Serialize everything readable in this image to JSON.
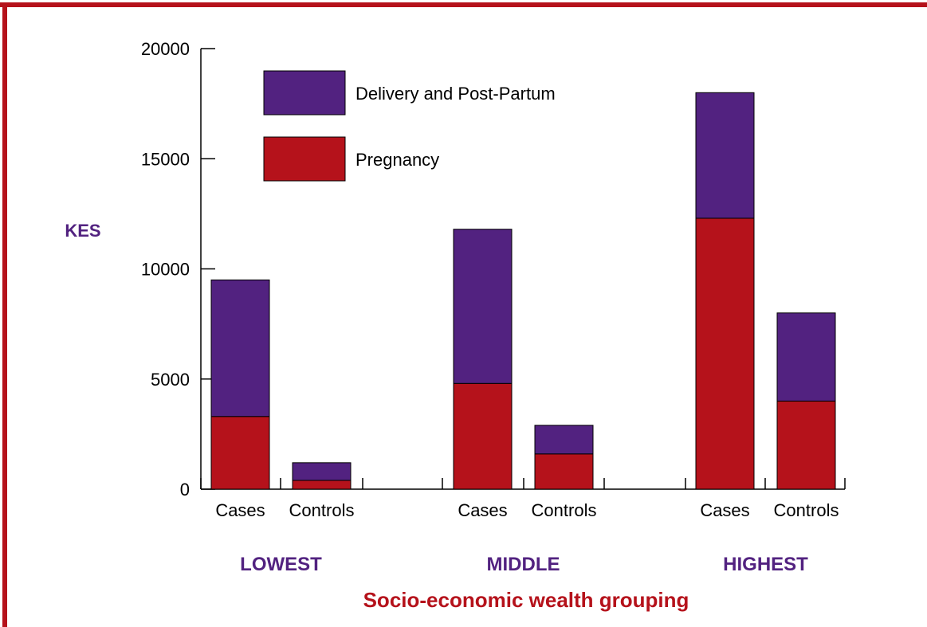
{
  "colors": {
    "frame": "#b5121b",
    "pregnancy": "#b5121b",
    "delivery": "#522280",
    "group_label": "#522280",
    "xlabel": "#b5121b",
    "axis": "#000000"
  },
  "chart_data": {
    "type": "bar",
    "stacked": true,
    "title": "",
    "ylabel": "KES",
    "xlabel": "Socio-economic wealth grouping",
    "ylim": [
      0,
      20000
    ],
    "yticks": [
      0,
      5000,
      10000,
      15000,
      20000
    ],
    "groups": [
      "LOWEST",
      "MIDDLE",
      "HIGHEST"
    ],
    "categories": [
      "Cases",
      "Controls",
      "Cases",
      "Controls",
      "Cases",
      "Controls"
    ],
    "series": [
      {
        "name": "Pregnancy",
        "color": "#b5121b",
        "values": [
          3300,
          400,
          4800,
          1600,
          12300,
          4000
        ]
      },
      {
        "name": "Delivery and Post-Partum",
        "color": "#522280",
        "values": [
          6200,
          800,
          7000,
          1300,
          5700,
          4000
        ]
      }
    ],
    "legend": {
      "position": "top-left",
      "entries": [
        {
          "label": "Delivery and Post-Partum",
          "color": "#522280"
        },
        {
          "label": "Pregnancy",
          "color": "#b5121b"
        }
      ]
    },
    "grid": false
  }
}
